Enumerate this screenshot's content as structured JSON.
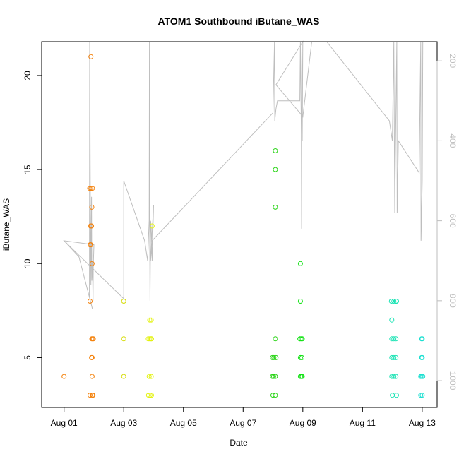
{
  "chart_data": {
    "type": "scatter",
    "title": "ATOM1 Southbound iButane_WAS",
    "xlabel": "Date",
    "ylabel": "iButane_WAS",
    "x_axis": {
      "unit": "day of August",
      "range": [
        0.25,
        13.5
      ],
      "ticks": [
        {
          "value": 1,
          "label": "Aug 01"
        },
        {
          "value": 3,
          "label": "Aug 03"
        },
        {
          "value": 5,
          "label": "Aug 05"
        },
        {
          "value": 7,
          "label": "Aug 07"
        },
        {
          "value": 9,
          "label": "Aug 09"
        },
        {
          "value": 11,
          "label": "Aug 11"
        },
        {
          "value": 13,
          "label": "Aug 13"
        }
      ]
    },
    "y_axis": {
      "range": [
        2.35,
        21.8
      ],
      "ticks": [
        5,
        10,
        15,
        20
      ]
    },
    "y2_axis": {
      "range": [
        1067,
        152
      ],
      "ticks": [
        200,
        400,
        600,
        800,
        1000
      ],
      "color": "#bebebe"
    },
    "points": [
      {
        "x": 1.0,
        "y": 4,
        "color": "#f4820d"
      },
      {
        "x": 1.87,
        "y": 3,
        "color": "#f4820d"
      },
      {
        "x": 1.95,
        "y": 3,
        "color": "#f4820d"
      },
      {
        "x": 1.97,
        "y": 3,
        "color": "#f4820d"
      },
      {
        "x": 1.94,
        "y": 4,
        "color": "#f4820d"
      },
      {
        "x": 1.92,
        "y": 5,
        "color": "#f4820d"
      },
      {
        "x": 1.94,
        "y": 5,
        "color": "#f4820d"
      },
      {
        "x": 1.93,
        "y": 6,
        "color": "#f4820d"
      },
      {
        "x": 1.96,
        "y": 6,
        "color": "#f4820d"
      },
      {
        "x": 1.98,
        "y": 6,
        "color": "#f4820d"
      },
      {
        "x": 1.87,
        "y": 8,
        "color": "#f4820d"
      },
      {
        "x": 1.94,
        "y": 10,
        "color": "#f4820d"
      },
      {
        "x": 1.87,
        "y": 11,
        "color": "#f4820d"
      },
      {
        "x": 1.9,
        "y": 11,
        "color": "#f4820d"
      },
      {
        "x": 1.89,
        "y": 12,
        "color": "#f4820d"
      },
      {
        "x": 1.92,
        "y": 12,
        "color": "#f4820d"
      },
      {
        "x": 1.93,
        "y": 13,
        "color": "#f4820d"
      },
      {
        "x": 1.86,
        "y": 14,
        "color": "#f4820d"
      },
      {
        "x": 1.9,
        "y": 14,
        "color": "#f4820d"
      },
      {
        "x": 1.95,
        "y": 14,
        "color": "#f4820d"
      },
      {
        "x": 1.9,
        "y": 21,
        "color": "#f4820d"
      },
      {
        "x": 3.0,
        "y": 4,
        "color": "#d6dc0a"
      },
      {
        "x": 3.0,
        "y": 6,
        "color": "#d6dc0a"
      },
      {
        "x": 3.0,
        "y": 8,
        "color": "#d6dc0a"
      },
      {
        "x": 3.83,
        "y": 3,
        "color": "#e3f20f"
      },
      {
        "x": 3.88,
        "y": 3,
        "color": "#e3f20f"
      },
      {
        "x": 3.93,
        "y": 3,
        "color": "#e3f20f"
      },
      {
        "x": 3.85,
        "y": 4,
        "color": "#e3f20f"
      },
      {
        "x": 3.92,
        "y": 4,
        "color": "#e3f20f"
      },
      {
        "x": 3.82,
        "y": 6,
        "color": "#e3f20f"
      },
      {
        "x": 3.87,
        "y": 6,
        "color": "#e3f20f"
      },
      {
        "x": 3.91,
        "y": 6,
        "color": "#e3f20f"
      },
      {
        "x": 3.93,
        "y": 6,
        "color": "#e3f20f"
      },
      {
        "x": 3.87,
        "y": 7,
        "color": "#e3f20f"
      },
      {
        "x": 3.92,
        "y": 7,
        "color": "#e3f20f"
      },
      {
        "x": 3.95,
        "y": 12,
        "color": "#e3f20f"
      },
      {
        "x": 8.0,
        "y": 3,
        "color": "#2bd418"
      },
      {
        "x": 8.08,
        "y": 3,
        "color": "#2bd418"
      },
      {
        "x": 7.98,
        "y": 4,
        "color": "#2bd418"
      },
      {
        "x": 8.02,
        "y": 4,
        "color": "#2bd418"
      },
      {
        "x": 8.08,
        "y": 4,
        "color": "#2bd418"
      },
      {
        "x": 7.98,
        "y": 5,
        "color": "#2bd418"
      },
      {
        "x": 8.03,
        "y": 5,
        "color": "#2bd418"
      },
      {
        "x": 8.1,
        "y": 5,
        "color": "#2bd418"
      },
      {
        "x": 8.08,
        "y": 6,
        "color": "#2bd418"
      },
      {
        "x": 8.08,
        "y": 13,
        "color": "#2bd418"
      },
      {
        "x": 8.08,
        "y": 15,
        "color": "#2bd418"
      },
      {
        "x": 8.08,
        "y": 16,
        "color": "#2bd418"
      },
      {
        "x": 8.92,
        "y": 4,
        "color": "#12e214"
      },
      {
        "x": 8.95,
        "y": 4,
        "color": "#12e214"
      },
      {
        "x": 8.98,
        "y": 4,
        "color": "#12e214"
      },
      {
        "x": 8.92,
        "y": 5,
        "color": "#12e214"
      },
      {
        "x": 8.97,
        "y": 5,
        "color": "#12e214"
      },
      {
        "x": 8.9,
        "y": 6,
        "color": "#12e214"
      },
      {
        "x": 8.94,
        "y": 6,
        "color": "#12e214"
      },
      {
        "x": 8.98,
        "y": 6,
        "color": "#12e214"
      },
      {
        "x": 8.92,
        "y": 8,
        "color": "#12e214"
      },
      {
        "x": 8.92,
        "y": 10,
        "color": "#12e214"
      },
      {
        "x": 12.0,
        "y": 3,
        "color": "#1be3b4"
      },
      {
        "x": 12.14,
        "y": 3,
        "color": "#1be3b4"
      },
      {
        "x": 11.98,
        "y": 4,
        "color": "#1be3b4"
      },
      {
        "x": 12.05,
        "y": 4,
        "color": "#1be3b4"
      },
      {
        "x": 12.12,
        "y": 4,
        "color": "#1be3b4"
      },
      {
        "x": 11.98,
        "y": 5,
        "color": "#1be3b4"
      },
      {
        "x": 12.05,
        "y": 5,
        "color": "#1be3b4"
      },
      {
        "x": 12.12,
        "y": 5,
        "color": "#1be3b4"
      },
      {
        "x": 11.98,
        "y": 6,
        "color": "#1be3b4"
      },
      {
        "x": 12.05,
        "y": 6,
        "color": "#1be3b4"
      },
      {
        "x": 12.12,
        "y": 6,
        "color": "#1be3b4"
      },
      {
        "x": 11.98,
        "y": 7,
        "color": "#1be3b4"
      },
      {
        "x": 11.97,
        "y": 8,
        "color": "#1be3b4"
      },
      {
        "x": 12.05,
        "y": 8,
        "color": "#1be3b4"
      },
      {
        "x": 12.12,
        "y": 8,
        "color": "#1be3b4"
      },
      {
        "x": 12.14,
        "y": 8,
        "color": "#1be3b4"
      },
      {
        "x": 12.95,
        "y": 3,
        "color": "#18dfd0"
      },
      {
        "x": 13.0,
        "y": 3,
        "color": "#18dfd0"
      },
      {
        "x": 12.95,
        "y": 4,
        "color": "#18dfd0"
      },
      {
        "x": 12.99,
        "y": 4,
        "color": "#18dfd0"
      },
      {
        "x": 13.02,
        "y": 4,
        "color": "#18dfd0"
      },
      {
        "x": 12.98,
        "y": 5,
        "color": "#18dfd0"
      },
      {
        "x": 13.0,
        "y": 5,
        "color": "#18dfd0"
      },
      {
        "x": 12.98,
        "y": 6,
        "color": "#18dfd0"
      },
      {
        "x": 13.0,
        "y": 6,
        "color": "#18dfd0"
      }
    ],
    "altitude_trace": {
      "axis": "y2",
      "color": "#bebebe",
      "points": [
        [
          1.0,
          650
        ],
        [
          1.5,
          690
        ],
        [
          1.95,
          820
        ],
        [
          1.85,
          790
        ],
        [
          1.86,
          150
        ],
        [
          1.88,
          540
        ],
        [
          1.9,
          760
        ],
        [
          1.92,
          540
        ],
        [
          1.93,
          750
        ],
        [
          1.95,
          700
        ],
        [
          1.97,
          800
        ],
        [
          1.98,
          710
        ],
        [
          2.0,
          660
        ],
        [
          1.0,
          650
        ],
        [
          3.0,
          795
        ],
        [
          3.0,
          500
        ],
        [
          3.7,
          650
        ],
        [
          3.8,
          700
        ],
        [
          3.85,
          600
        ],
        [
          3.86,
          150
        ],
        [
          3.87,
          650
        ],
        [
          3.88,
          800
        ],
        [
          3.9,
          600
        ],
        [
          3.92,
          620
        ],
        [
          3.95,
          700
        ],
        [
          4.0,
          560
        ],
        [
          3.9,
          700
        ],
        [
          3.95,
          650
        ],
        [
          8.0,
          330
        ],
        [
          8.05,
          150
        ],
        [
          8.06,
          350
        ],
        [
          8.1,
          320
        ],
        [
          8.15,
          300
        ],
        [
          8.9,
          300
        ],
        [
          8.92,
          150
        ],
        [
          8.95,
          380
        ],
        [
          8.96,
          620
        ],
        [
          8.97,
          150
        ],
        [
          8.98,
          400
        ],
        [
          9.0,
          150
        ],
        [
          8.1,
          260
        ],
        [
          8.9,
          330
        ],
        [
          9.0,
          340
        ],
        [
          9.3,
          150
        ],
        [
          9.8,
          150
        ],
        [
          11.9,
          350
        ],
        [
          12.0,
          400
        ],
        [
          12.05,
          150
        ],
        [
          12.08,
          580
        ],
        [
          12.1,
          450
        ],
        [
          12.15,
          150
        ],
        [
          12.16,
          580
        ],
        [
          12.2,
          400
        ],
        [
          12.9,
          480
        ],
        [
          12.95,
          150
        ],
        [
          12.96,
          650
        ],
        [
          13.0,
          500
        ],
        [
          13.02,
          150
        ]
      ]
    }
  }
}
